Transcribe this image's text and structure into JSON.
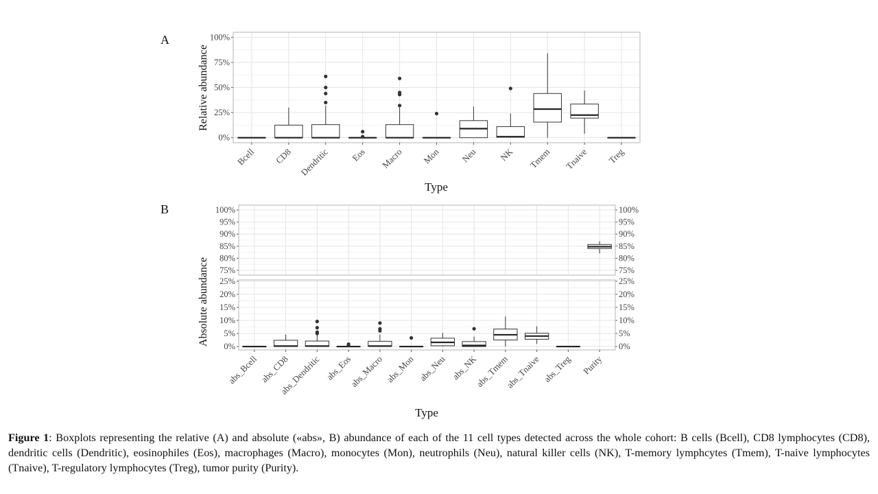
{
  "panel_labels": {
    "a": "A",
    "b": "B"
  },
  "caption": {
    "lead": "Figure 1",
    "text": ": Boxplots representing the relative  (A) and absolute («abs», B) abundance of each of the 11 cell types detected across the whole cohort: B cells (Bcell),  CD8 lymphocytes (CD8),  dendritic cells (Dendritic),  eosinophiles (Eos), macrophages (Macro), monocytes (Mon), neutrophils (Neu), natural killer  cells (NK), T-memory lymphcytes (Tmem), T-naive lymphocytes (Tnaive), T-regulatory lymphocytes (Treg), tumor purity (Purity)."
  },
  "chart_data": [
    {
      "type": "boxplot",
      "panel": "A",
      "xlabel": "Type",
      "ylabel": "Relative abundance",
      "ylim": [
        -0.05,
        1.05
      ],
      "yticks": [
        0,
        0.25,
        0.5,
        0.75,
        1.0
      ],
      "ytick_labels": [
        "0%",
        "25%",
        "50%",
        "75%",
        "100%"
      ],
      "grid": true,
      "categories": [
        "Bcell",
        "CD8",
        "Dendritic",
        "Eos",
        "Macro",
        "Mon",
        "Neu",
        "NK",
        "Tmem",
        "Tnaive",
        "Treg"
      ],
      "boxes": [
        {
          "min": 0,
          "q1": 0,
          "median": 0,
          "q3": 0,
          "max": 0,
          "outliers": []
        },
        {
          "min": 0,
          "q1": 0,
          "median": 0,
          "q3": 0.125,
          "max": 0.3,
          "outliers": []
        },
        {
          "min": 0,
          "q1": 0,
          "median": 0,
          "q3": 0.13,
          "max": 0.32,
          "outliers": [
            0.35,
            0.44,
            0.5,
            0.61
          ]
        },
        {
          "min": 0,
          "q1": 0,
          "median": 0,
          "q3": 0,
          "max": 0,
          "outliers": [
            0.01,
            0.06
          ]
        },
        {
          "min": 0,
          "q1": 0,
          "median": 0,
          "q3": 0.13,
          "max": 0.3,
          "outliers": [
            0.32,
            0.43,
            0.45,
            0.59
          ]
        },
        {
          "min": 0,
          "q1": 0,
          "median": 0,
          "q3": 0,
          "max": 0,
          "outliers": [
            0.24
          ]
        },
        {
          "min": 0,
          "q1": 0,
          "median": 0.09,
          "q3": 0.17,
          "max": 0.31,
          "outliers": []
        },
        {
          "min": 0,
          "q1": 0.005,
          "median": 0.01,
          "q3": 0.11,
          "max": 0.24,
          "outliers": [
            0.49
          ]
        },
        {
          "min": 0,
          "q1": 0.155,
          "median": 0.285,
          "q3": 0.44,
          "max": 0.84,
          "outliers": []
        },
        {
          "min": 0.04,
          "q1": 0.195,
          "median": 0.225,
          "q3": 0.335,
          "max": 0.47,
          "outliers": []
        },
        {
          "min": 0,
          "q1": 0,
          "median": 0,
          "q3": 0,
          "max": 0,
          "outliers": []
        }
      ]
    },
    {
      "type": "boxplot",
      "panel": "B",
      "xlabel": "Type",
      "ylabel": "Absolute abundance",
      "grid": true,
      "categories": [
        "abs_Bcell",
        "abs_CD8",
        "abs_Dendritic",
        "abs_Eos",
        "abs_Macro",
        "abs_Mon",
        "abs_Neu",
        "abs_NK",
        "abs_Tmem",
        "abs_Tnaive",
        "abs_Treg",
        "Purity"
      ],
      "upper_ylim": [
        0.73,
        1.02
      ],
      "upper_yticks": [
        0.75,
        0.8,
        0.85,
        0.9,
        0.95,
        1.0
      ],
      "upper_ytick_labels": [
        "75%",
        "80%",
        "85%",
        "90%",
        "95%",
        "100%"
      ],
      "lower_ylim": [
        -0.013,
        0.255
      ],
      "lower_yticks": [
        0,
        0.05,
        0.1,
        0.15,
        0.2,
        0.25
      ],
      "lower_ytick_labels": [
        "0%",
        "5%",
        "10%",
        "15%",
        "20%",
        "25%"
      ],
      "boxes": [
        {
          "min": 0,
          "q1": 0,
          "median": 0,
          "q3": 0,
          "max": 0,
          "outliers": []
        },
        {
          "min": 0,
          "q1": 0,
          "median": 0.002,
          "q3": 0.024,
          "max": 0.046,
          "outliers": []
        },
        {
          "min": 0,
          "q1": 0,
          "median": 0.002,
          "q3": 0.021,
          "max": 0.046,
          "outliers": [
            0.05,
            0.055,
            0.072,
            0.096
          ]
        },
        {
          "min": 0,
          "q1": 0,
          "median": 0,
          "q3": 0,
          "max": 0,
          "outliers": [
            0.005,
            0.009
          ]
        },
        {
          "min": 0,
          "q1": 0,
          "median": 0.002,
          "q3": 0.02,
          "max": 0.046,
          "outliers": [
            0.06,
            0.068,
            0.09
          ]
        },
        {
          "min": 0,
          "q1": 0,
          "median": 0,
          "q3": 0,
          "max": 0,
          "outliers": [
            0.033
          ]
        },
        {
          "min": 0,
          "q1": 0.003,
          "median": 0.016,
          "q3": 0.032,
          "max": 0.052,
          "outliers": []
        },
        {
          "min": 0,
          "q1": 0,
          "median": 0.004,
          "q3": 0.019,
          "max": 0.038,
          "outliers": [
            0.068
          ]
        },
        {
          "min": 0,
          "q1": 0.025,
          "median": 0.045,
          "q3": 0.067,
          "max": 0.115,
          "outliers": []
        },
        {
          "min": 0.01,
          "q1": 0.028,
          "median": 0.04,
          "q3": 0.051,
          "max": 0.077,
          "outliers": []
        },
        {
          "min": 0,
          "q1": 0,
          "median": 0,
          "q3": 0,
          "max": 0,
          "outliers": []
        },
        {
          "min": 0.82,
          "q1": 0.84,
          "median": 0.848,
          "q3": 0.857,
          "max": 0.87,
          "outliers": []
        }
      ]
    }
  ]
}
